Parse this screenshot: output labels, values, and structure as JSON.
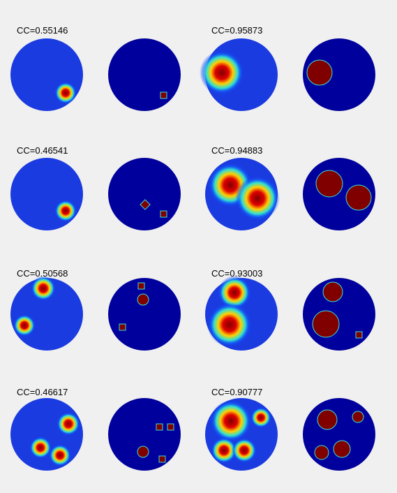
{
  "panels": [
    {
      "label": "CC=0.55146"
    },
    {
      "label": "CC=0.95873"
    },
    {
      "label": "CC=0.46541"
    },
    {
      "label": "CC=0.94883"
    },
    {
      "label": "CC=0.50568"
    },
    {
      "label": "CC=0.93003"
    },
    {
      "label": "CC=0.46617"
    },
    {
      "label": "CC=0.90777"
    }
  ]
}
